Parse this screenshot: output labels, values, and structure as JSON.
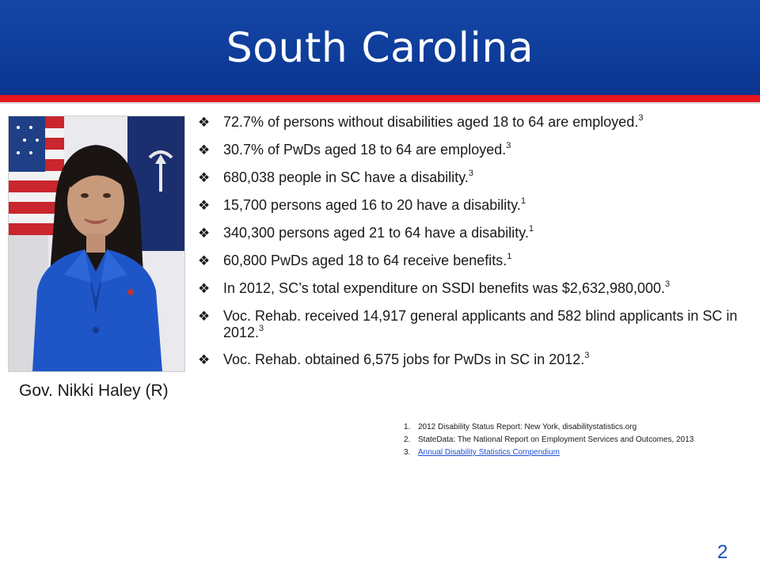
{
  "slide": {
    "title": "South Carolina",
    "caption": "Gov. Nikki Haley (R)",
    "page_number": "2",
    "colors": {
      "header_blue": "#0d3a97",
      "accent_red": "#e8151c",
      "link_blue": "#1f4fd6",
      "page_number_blue": "#1a4fb4"
    }
  },
  "bullets": [
    {
      "text": "72.7% of persons without disabilities aged 18 to 64 are employed.",
      "ref": "3"
    },
    {
      "text": "30.7% of PwDs aged 18 to 64 are employed.",
      "ref": "3"
    },
    {
      "text": "680,038 people in SC have a disability.",
      "ref": "3"
    },
    {
      "text": "15,700 persons aged 16 to 20 have a disability.",
      "ref": "1"
    },
    {
      "text": "340,300 persons aged 21 to 64 have a disability.",
      "ref": "1"
    },
    {
      "text": "60,800 PwDs aged 18 to 64 receive benefits.",
      "ref": "1"
    },
    {
      "text": "In 2012, SC’s total expenditure on SSDI benefits was $2,632,980,000.",
      "ref": "3"
    },
    {
      "text": "Voc. Rehab. received 14,917 general applicants and 582 blind applicants in SC in 2012.",
      "ref": "3"
    },
    {
      "text": "Voc. Rehab. obtained 6,575 jobs for PwDs in SC in 2012.",
      "ref": "3"
    }
  ],
  "references": [
    {
      "num": "1.",
      "text": "2012 Disability Status Report: New York, disabilitystatistics.org"
    },
    {
      "num": "2.",
      "text": "StateData: The National Report on Employment Services and Outcomes, 2013"
    },
    {
      "num": "3.",
      "text": "Annual Disability Statistics Compendium"
    }
  ],
  "bullet_icon": "diamond-quad-icon"
}
